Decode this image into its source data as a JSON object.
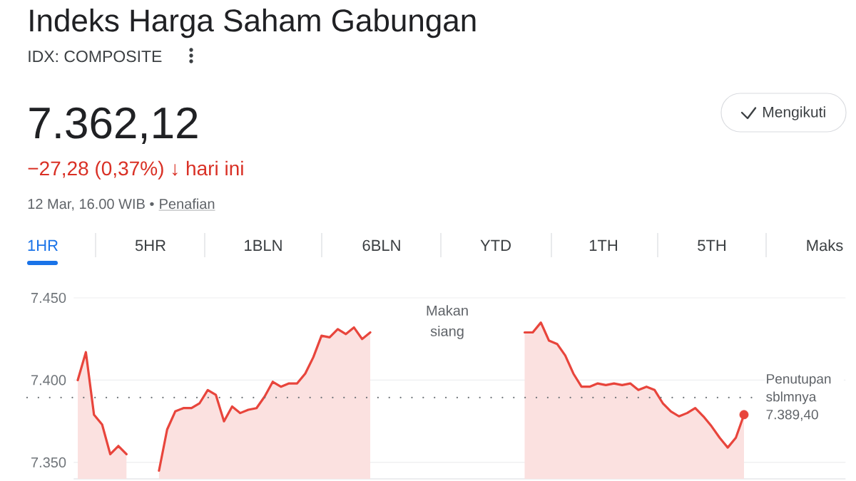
{
  "chart_data": {
    "type": "area",
    "title": "Indeks Harga Saham Gabungan",
    "subtitle": "IDX: COMPOSITE",
    "categories": [
      null,
      null,
      null,
      null,
      null,
      null,
      null,
      null,
      null,
      null,
      null,
      null,
      null,
      null,
      null,
      null,
      null,
      null,
      null,
      null,
      null,
      null,
      null,
      null,
      null,
      null,
      null,
      null,
      null,
      null,
      null,
      null,
      null,
      null,
      null,
      null,
      null,
      null,
      null,
      null,
      null,
      null,
      null,
      null,
      null,
      null,
      null,
      null,
      null,
      null,
      null,
      null,
      null,
      null,
      null,
      null,
      null,
      null,
      null,
      null,
      null,
      null,
      null,
      null,
      null,
      null,
      null,
      null,
      null,
      null,
      null,
      null,
      null,
      null,
      null,
      null,
      null,
      null,
      null,
      null,
      null,
      null,
      null,
      null,
      null,
      null,
      null,
      null,
      null,
      null,
      null,
      null,
      null,
      null,
      null
    ],
    "series": [
      {
        "color": "#e8453c",
        "values": [
          7400,
          7417,
          7379,
          7373,
          7355,
          7360,
          7355,
          null,
          null,
          null,
          7345,
          7370,
          7381,
          7383,
          7383,
          7386,
          7394,
          7391,
          7375,
          7384,
          7380,
          7382,
          7383,
          7390,
          7399,
          7396,
          7398,
          7398,
          7404,
          7414,
          7427,
          7426,
          7431,
          7428,
          7432,
          7425,
          7429,
          null,
          null,
          null,
          null,
          null,
          null,
          null,
          null,
          null,
          null,
          null,
          null,
          null,
          null,
          null,
          null,
          null,
          null,
          7429,
          7429,
          7435,
          7424,
          7422,
          7415,
          7404,
          7396,
          7396,
          7398,
          7397,
          7398,
          7397,
          7398,
          7394,
          7396,
          7394,
          7386,
          7381,
          7378,
          7380,
          7383,
          7378,
          7372,
          7365,
          7359,
          7365,
          7379,
          null,
          null,
          null,
          null,
          null,
          null,
          null,
          null,
          null,
          null,
          null,
          null
        ]
      },
      {
        "type": "scatter",
        "color": "#e8453c",
        "values": [
          null,
          null,
          null,
          null,
          null,
          null,
          null,
          null,
          null,
          null,
          null,
          null,
          null,
          null,
          null,
          null,
          null,
          null,
          null,
          null,
          null,
          null,
          null,
          null,
          null,
          null,
          null,
          null,
          null,
          null,
          null,
          null,
          null,
          null,
          null,
          null,
          null,
          null,
          null,
          null,
          null,
          null,
          null,
          null,
          null,
          null,
          null,
          null,
          null,
          null,
          null,
          null,
          null,
          null,
          null,
          null,
          null,
          null,
          null,
          null,
          null,
          null,
          null,
          null,
          null,
          null,
          null,
          null,
          null,
          null,
          null,
          null,
          null,
          null,
          null,
          null,
          null,
          null,
          null,
          null,
          null,
          null,
          7379,
          null,
          null,
          null,
          null,
          null,
          null,
          null,
          null,
          null,
          null,
          null,
          null
        ]
      }
    ],
    "ylim": [
      7340,
      7450
    ],
    "yticks": [
      {
        "value": 7450,
        "label": "7.450"
      },
      {
        "value": 7400,
        "label": "7.400"
      },
      {
        "value": 7350,
        "label": "7.350"
      }
    ],
    "grid": "y",
    "tick_labels": "y",
    "ref_lines": [
      {
        "axis": "y",
        "value": 7389.4,
        "label": "Penutupan sblmnya 7.389,40",
        "color": "#70757a",
        "line_style": "dotted"
      }
    ],
    "annotations": [
      "7.362,12",
      "−27,28 (0,37%) ↓ hari ini",
      "12 Mar, 16.00 WIB •",
      "Penafian",
      "Mengikuti",
      "1HR",
      "5HR",
      "1BLN",
      "6BLN",
      "YTD",
      "1TH",
      "5TH",
      "Maks",
      "Makan siang"
    ]
  }
}
